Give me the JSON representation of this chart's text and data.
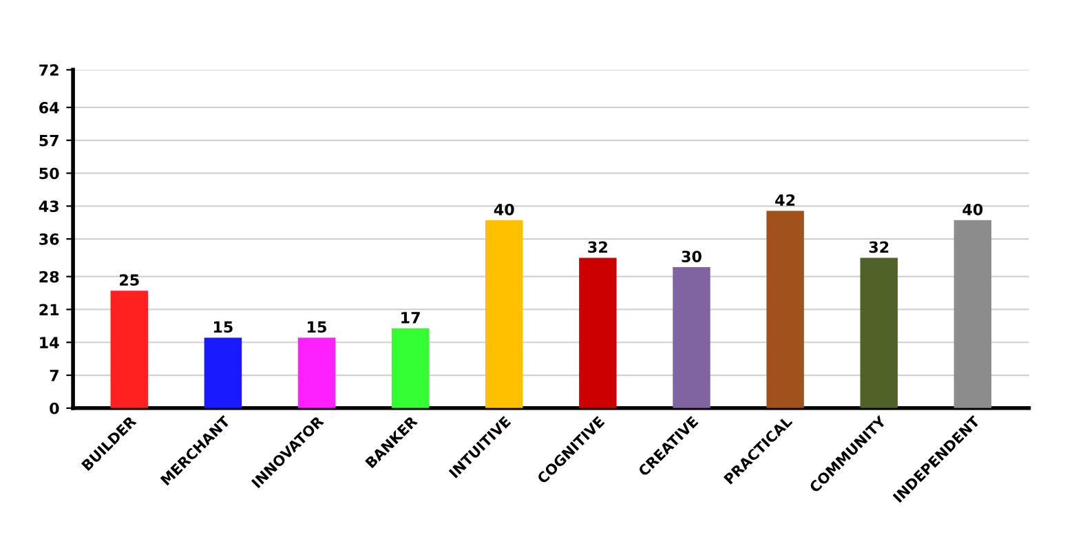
{
  "chart_data": {
    "type": "bar",
    "categories": [
      "BUILDER",
      "MERCHANT",
      "INNOVATOR",
      "BANKER",
      "INTUITIVE",
      "COGNITIVE",
      "CREATIVE",
      "PRACTICAL",
      "COMMUNITY",
      "INDEPENDENT"
    ],
    "values": [
      25,
      15,
      15,
      17,
      40,
      32,
      30,
      42,
      32,
      40
    ],
    "colors": [
      "#ff2020",
      "#1a1aff",
      "#ff20ff",
      "#33ff33",
      "#ffc000",
      "#cc0000",
      "#8064a2",
      "#a0521a",
      "#4f6228",
      "#8c8c8c"
    ],
    "ylim": [
      0,
      72
    ],
    "yticks": [
      0,
      7,
      14,
      21,
      28,
      36,
      43,
      50,
      57,
      64,
      72
    ],
    "grid": "y",
    "data_labels": true
  }
}
